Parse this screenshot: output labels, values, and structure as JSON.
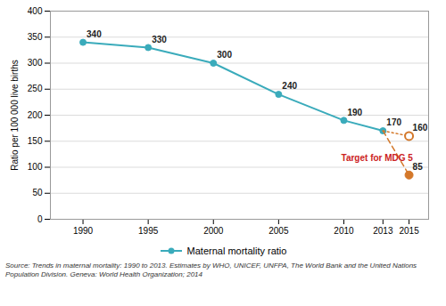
{
  "chart_data": {
    "type": "line",
    "ylabel": "Ratio per 100 000 live births",
    "xlim": [
      1987.5,
      2016.5
    ],
    "xticks": [
      1990,
      1995,
      2000,
      2005,
      2010,
      2013,
      2015
    ],
    "ylim": [
      0,
      400
    ],
    "yticks": [
      0,
      50,
      100,
      150,
      200,
      250,
      300,
      350,
      400
    ],
    "grid": "y",
    "legend": "bottom",
    "series": [
      {
        "name": "Maternal mortality ratio",
        "type": "line",
        "color": "#3aabbb",
        "marker": "circle",
        "line_style": "solid",
        "data_labels": true,
        "x": [
          1990,
          1995,
          2000,
          2005,
          2010,
          2013
        ],
        "values": [
          340,
          330,
          300,
          240,
          190,
          170
        ]
      },
      {
        "type": "line",
        "color": "#d4782a",
        "line_style": "dotted",
        "x": [
          2013,
          2015
        ],
        "values": [
          170,
          160
        ]
      },
      {
        "type": "line",
        "color": "#d4782a",
        "line_style": "dashed",
        "x": [
          2013,
          2015
        ],
        "values": [
          170,
          85
        ]
      },
      {
        "type": "scatter",
        "color": "#d4782a",
        "marker": "open circle",
        "data_labels": true,
        "x": [
          2015
        ],
        "values": [
          160
        ]
      },
      {
        "type": "scatter",
        "color": "#d4782a",
        "marker": "circle",
        "data_labels": true,
        "x": [
          2015
        ],
        "values": [
          85
        ]
      }
    ],
    "annotations": [
      {
        "text": "Target for MDG 5",
        "x": 2009.8,
        "y": 112,
        "color": "#cc2222"
      }
    ],
    "caption": "Source: Trends in maternal mortality: 1990 to 2013. Estimates by WHO, UNICEF, UNFPA, The World Bank and the United Nations\nPopulation Division. Geneva: World Health Organization; 2014"
  }
}
